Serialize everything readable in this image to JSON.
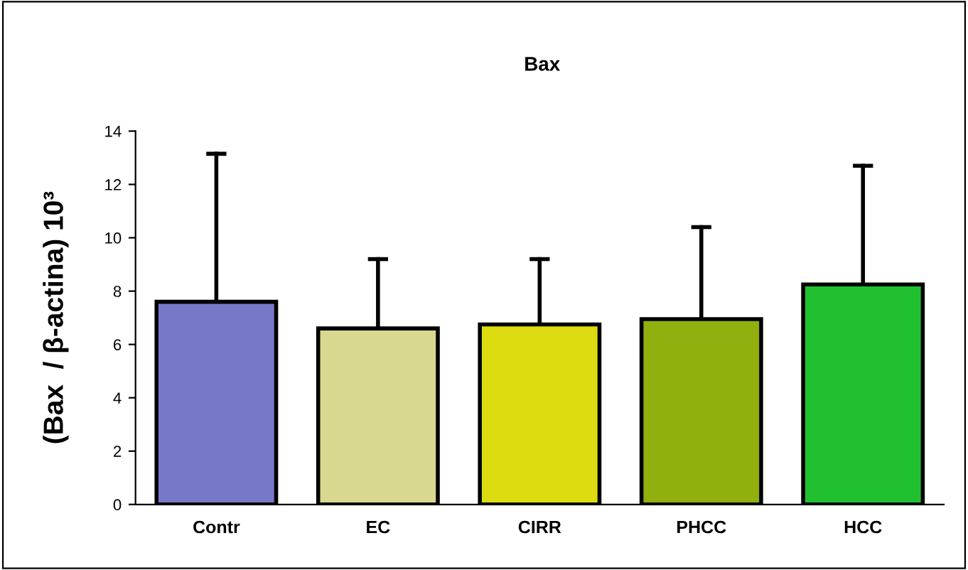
{
  "chart_data": {
    "type": "bar",
    "title": "Bax",
    "ylabel": "(Bax  / β-actina) 10³",
    "categories": [
      "Contr",
      "EC",
      "CIRR",
      "PHCC",
      "HCC"
    ],
    "values": [
      7.6,
      6.6,
      6.75,
      6.95,
      8.25
    ],
    "errors": [
      [
        7.6,
        13.15
      ],
      [
        6.6,
        9.2
      ],
      [
        6.75,
        9.2
      ],
      [
        6.95,
        10.4
      ],
      [
        8.25,
        12.7
      ]
    ],
    "colors": [
      "#7878c8",
      "#d8d890",
      "#dcdc10",
      "#90b010",
      "#20c030"
    ],
    "ylim": [
      0,
      14
    ],
    "yticks": [
      0,
      2,
      4,
      6,
      8,
      10,
      12,
      14
    ],
    "grid": false,
    "legend": false
  }
}
